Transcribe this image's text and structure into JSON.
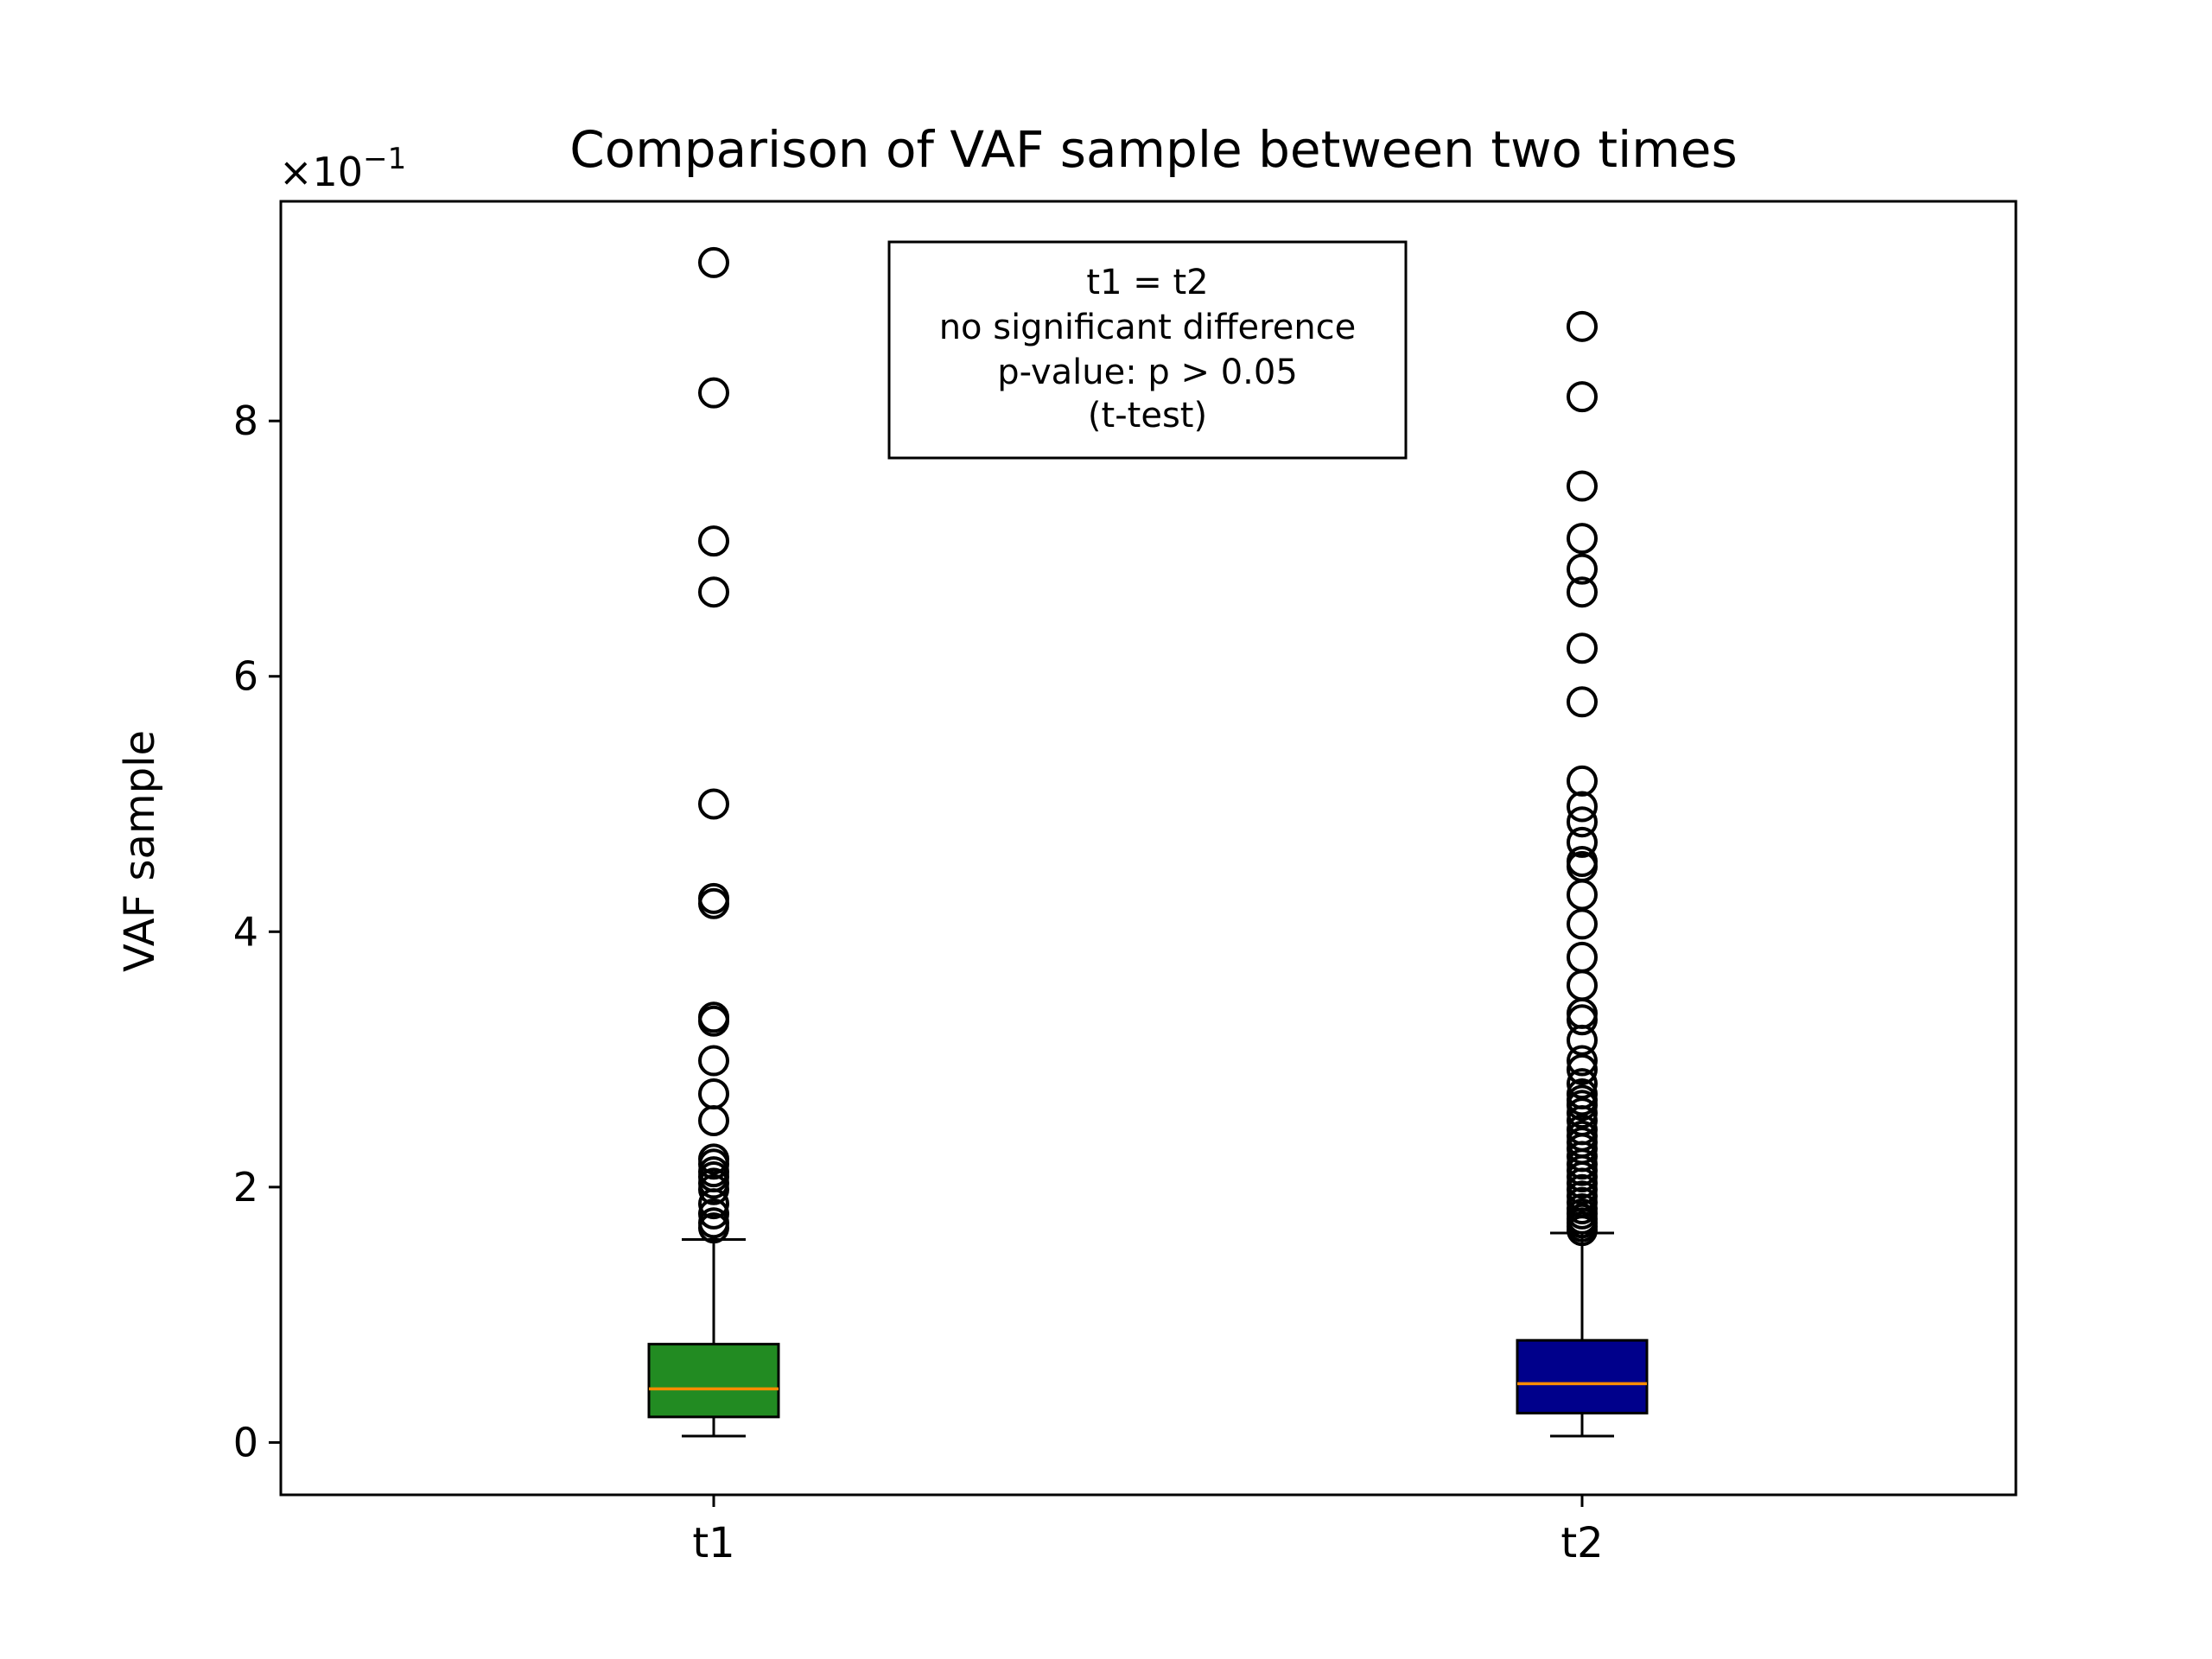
{
  "chart_data": {
    "type": "box",
    "title": "Comparison of VAF sample between two times",
    "xlabel": "",
    "ylabel": "VAF sample",
    "axis_multiplier": "×10",
    "axis_multiplier_exponent": "−1",
    "ylim": [
      -0.41,
      9.72
    ],
    "yticks": [
      0,
      2,
      4,
      6,
      8
    ],
    "ytick_labels": [
      "0",
      "2",
      "4",
      "6",
      "8"
    ],
    "categories": [
      "t1",
      "t2"
    ],
    "grid": false,
    "legend": "none",
    "annotation": {
      "position": "top-center",
      "lines": [
        "t1 = t2",
        "no significant difference",
        "p-value: p > 0.05",
        "(t-test)"
      ]
    },
    "series": [
      {
        "category": "t1",
        "color": "#228B22",
        "whisker_low": 0.05,
        "q1": 0.2,
        "median": 0.42,
        "q3": 0.77,
        "whisker_high": 1.59,
        "outliers": [
          9.24,
          8.22,
          7.06,
          6.66,
          5.0,
          4.26,
          4.22,
          3.33,
          3.3,
          2.99,
          2.73,
          2.52,
          2.22,
          2.18,
          2.12,
          2.08,
          2.03,
          1.98,
          1.87,
          1.79,
          1.72,
          1.68
        ]
      },
      {
        "category": "t2",
        "color": "#00008B",
        "whisker_low": 0.05,
        "q1": 0.23,
        "median": 0.46,
        "q3": 0.8,
        "whisker_high": 1.64,
        "outliers": [
          8.74,
          8.19,
          7.49,
          7.08,
          6.84,
          6.66,
          6.22,
          5.8,
          5.18,
          4.98,
          4.86,
          4.7,
          4.55,
          4.51,
          4.29,
          4.06,
          3.8,
          3.58,
          3.36,
          3.31,
          3.15,
          2.99,
          2.92,
          2.81,
          2.73,
          2.68,
          2.64,
          2.58,
          2.52,
          2.45,
          2.4,
          2.35,
          2.3,
          2.24,
          2.18,
          2.13,
          2.08,
          2.03,
          1.98,
          1.93,
          1.88,
          1.83,
          1.79,
          1.75,
          1.72,
          1.69,
          1.66
        ]
      }
    ],
    "colors": {
      "median": "#FF8C00",
      "outline": "#000000"
    }
  }
}
